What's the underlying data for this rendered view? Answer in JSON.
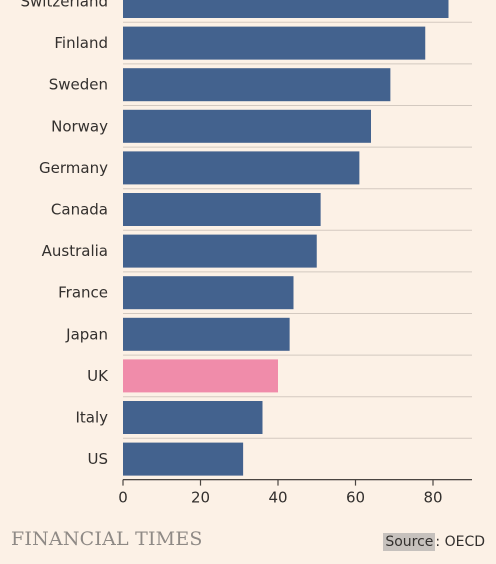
{
  "chart_data": {
    "type": "bar",
    "orientation": "horizontal",
    "categories": [
      "Switzerland",
      "Finland",
      "Sweden",
      "Norway",
      "Germany",
      "Canada",
      "Australia",
      "France",
      "Japan",
      "UK",
      "Italy",
      "US"
    ],
    "values": [
      84,
      78,
      69,
      64,
      61,
      51,
      50,
      44,
      43,
      40,
      36,
      31
    ],
    "highlight": "UK",
    "colors": {
      "default": "#43628e",
      "highlight": "#f08caa"
    },
    "xlim": [
      0,
      90
    ],
    "xticks": [
      0,
      20,
      40,
      60,
      80
    ],
    "grid": true
  },
  "footer": {
    "brand": "FINANCIAL TIMES",
    "source_key": "Source",
    "source_value": ": OECD"
  }
}
